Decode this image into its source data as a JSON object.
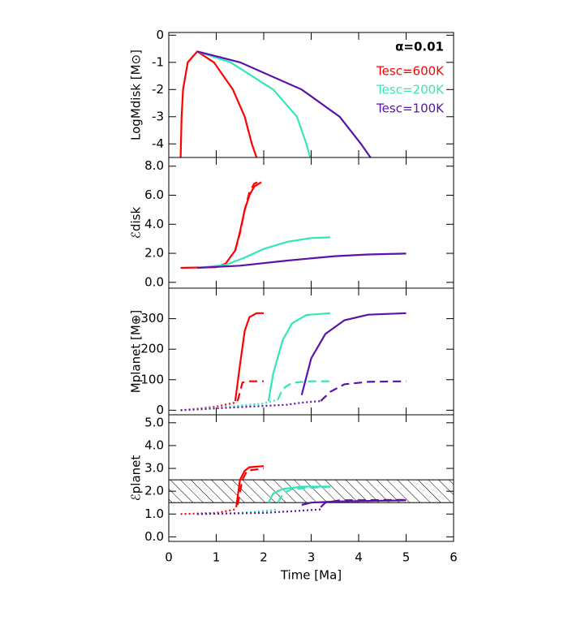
{
  "chart_data": [
    {
      "type": "line",
      "y_label": "LogMdisk [M⊙]",
      "annotation": "α=0.01",
      "xlim": [
        0,
        6
      ],
      "xticks": [
        0,
        1,
        2,
        3,
        4,
        5,
        6
      ],
      "ylim": [
        -4.5,
        0.1
      ],
      "yticks": [
        0,
        -1,
        -2,
        -3,
        -4
      ],
      "series": [
        {
          "name": "Tesc=600K",
          "color": "#ff0000",
          "style": "solid",
          "x": [
            0.25,
            0.27,
            0.3,
            0.4,
            0.6,
            0.95,
            1.35,
            1.6,
            1.75,
            1.85
          ],
          "values": [
            -4.5,
            -3,
            -2,
            -1,
            -0.6,
            -1,
            -2,
            -3,
            -4,
            -4.5
          ]
        },
        {
          "name": "Tesc=200K",
          "color": "#33e6b8",
          "style": "solid",
          "x": [
            0.6,
            1.3,
            2.2,
            2.7,
            2.9,
            2.98
          ],
          "values": [
            -0.6,
            -1,
            -2,
            -3,
            -4,
            -4.5
          ]
        },
        {
          "name": "Tesc=100K",
          "color": "#5a12a8",
          "style": "solid",
          "x": [
            0.6,
            1.5,
            2.8,
            3.6,
            4.05,
            4.25
          ],
          "values": [
            -0.6,
            -1,
            -2,
            -3,
            -4,
            -4.5
          ]
        }
      ]
    },
    {
      "type": "line",
      "y_label": "ℰdisk",
      "xlim": [
        0,
        6
      ],
      "xticks": [
        0,
        1,
        2,
        3,
        4,
        5,
        6
      ],
      "ylim": [
        -0.4,
        8.6
      ],
      "yticks": [
        {
          "value": 0,
          "label": "0.0"
        },
        {
          "value": 2,
          "label": "2.0"
        },
        {
          "value": 4,
          "label": "4.0"
        },
        {
          "value": 6,
          "label": "6.0"
        },
        {
          "value": 8,
          "label": "8.0"
        }
      ],
      "series": [
        {
          "color": "#ff0000",
          "style": "solid",
          "x": [
            0.25,
            1.0,
            1.2,
            1.4,
            1.5,
            1.6,
            1.7,
            1.8,
            1.95
          ],
          "values": [
            1.0,
            1.05,
            1.3,
            2.2,
            3.5,
            5.0,
            6.0,
            6.6,
            6.9
          ]
        },
        {
          "color": "#ff0000",
          "style": "dashed",
          "x": [
            1.4,
            1.5,
            1.6,
            1.7,
            1.8,
            1.95
          ],
          "values": [
            2.2,
            3.4,
            5.0,
            6.2,
            6.8,
            7.0
          ]
        },
        {
          "color": "#33e6b8",
          "style": "solid",
          "x": [
            0.6,
            1.2,
            1.6,
            2.0,
            2.5,
            3.0,
            3.4
          ],
          "values": [
            1.0,
            1.2,
            1.7,
            2.3,
            2.8,
            3.05,
            3.1
          ]
        },
        {
          "color": "#5a12a8",
          "style": "solid",
          "x": [
            0.6,
            1.5,
            2.5,
            3.5,
            4.2,
            5.0
          ],
          "values": [
            1.0,
            1.15,
            1.5,
            1.8,
            1.92,
            1.98
          ]
        }
      ]
    },
    {
      "type": "line",
      "y_label": "Mplanet [M⊕]",
      "xlim": [
        0,
        6
      ],
      "xticks": [
        0,
        1,
        2,
        3,
        4,
        5,
        6
      ],
      "ylim": [
        -15,
        400
      ],
      "yticks": [
        0,
        100,
        200,
        300
      ],
      "series": [
        {
          "color": "#ff0000",
          "style": "dotted",
          "x": [
            0.25,
            0.6,
            1.0,
            1.4
          ],
          "values": [
            0,
            5,
            12,
            25
          ]
        },
        {
          "color": "#ff0000",
          "style": "solid",
          "x": [
            1.4,
            1.5,
            1.6,
            1.7,
            1.85,
            2.0
          ],
          "values": [
            30,
            150,
            260,
            305,
            318,
            318
          ]
        },
        {
          "color": "#ff0000",
          "style": "dashed",
          "x": [
            1.45,
            1.5,
            1.55,
            1.65,
            2.0
          ],
          "values": [
            30,
            60,
            90,
            95,
            95
          ]
        },
        {
          "color": "#33e6b8",
          "style": "dotted",
          "x": [
            0.25,
            1.0,
            1.5,
            2.0,
            2.3
          ],
          "values": [
            0,
            8,
            15,
            22,
            35
          ]
        },
        {
          "color": "#33e6b8",
          "style": "solid",
          "x": [
            2.1,
            2.2,
            2.4,
            2.6,
            2.9,
            3.4
          ],
          "values": [
            30,
            120,
            230,
            285,
            312,
            318
          ]
        },
        {
          "color": "#33e6b8",
          "style": "dashed",
          "x": [
            2.3,
            2.4,
            2.6,
            3.0,
            3.4
          ],
          "values": [
            35,
            70,
            90,
            95,
            95
          ]
        },
        {
          "color": "#5a12a8",
          "style": "dotted",
          "x": [
            0.25,
            1.5,
            2.5,
            2.8,
            3.2
          ],
          "values": [
            0,
            10,
            18,
            25,
            30
          ]
        },
        {
          "color": "#5a12a8",
          "style": "solid",
          "x": [
            2.8,
            3.0,
            3.3,
            3.7,
            4.2,
            5.0
          ],
          "values": [
            50,
            170,
            250,
            295,
            313,
            318
          ]
        },
        {
          "color": "#5a12a8",
          "style": "dashed",
          "x": [
            3.2,
            3.4,
            3.7,
            4.2,
            5.0
          ],
          "values": [
            30,
            60,
            85,
            93,
            95
          ]
        }
      ]
    },
    {
      "type": "line",
      "y_label": "ℰplanet",
      "x_label": "Time [Ma]",
      "xlim": [
        0,
        6
      ],
      "xticks": [
        0,
        1,
        2,
        3,
        4,
        5,
        6
      ],
      "ylim": [
        -0.2,
        5.35
      ],
      "yticks": [
        {
          "value": 0,
          "label": "0.0"
        },
        {
          "value": 1,
          "label": "1.0"
        },
        {
          "value": 2,
          "label": "2.0"
        },
        {
          "value": 3,
          "label": "3.0"
        },
        {
          "value": 4,
          "label": "4.0"
        },
        {
          "value": 5,
          "label": "5.0"
        }
      ],
      "band": [
        1.5,
        2.5
      ],
      "series": [
        {
          "color": "#ff0000",
          "style": "dotted",
          "x": [
            0.25,
            1.0,
            1.4
          ],
          "values": [
            1.0,
            1.05,
            1.2
          ]
        },
        {
          "color": "#ff0000",
          "style": "solid",
          "x": [
            1.42,
            1.5,
            1.6,
            1.7,
            2.0
          ],
          "values": [
            1.3,
            2.5,
            2.9,
            3.05,
            3.1
          ]
        },
        {
          "color": "#ff0000",
          "style": "dashed",
          "x": [
            1.45,
            1.55,
            1.65,
            2.0
          ],
          "values": [
            1.4,
            2.5,
            2.9,
            3.0
          ]
        },
        {
          "color": "#33e6b8",
          "style": "dotted",
          "x": [
            0.6,
            1.5,
            2.1,
            2.3
          ],
          "values": [
            1.0,
            1.05,
            1.15,
            1.2
          ]
        },
        {
          "color": "#33e6b8",
          "style": "solid",
          "x": [
            2.1,
            2.2,
            2.4,
            2.8,
            3.4
          ],
          "values": [
            1.5,
            1.9,
            2.1,
            2.2,
            2.2
          ]
        },
        {
          "color": "#33e6b8",
          "style": "dashed",
          "x": [
            2.3,
            2.4,
            2.6,
            3.4
          ],
          "values": [
            1.5,
            1.9,
            2.1,
            2.2
          ]
        },
        {
          "color": "#5a12a8",
          "style": "dotted",
          "x": [
            0.6,
            2.0,
            2.8,
            3.2
          ],
          "values": [
            1.0,
            1.05,
            1.15,
            1.2
          ]
        },
        {
          "color": "#5a12a8",
          "style": "solid",
          "x": [
            2.8,
            3.0,
            3.5,
            5.0
          ],
          "values": [
            1.4,
            1.5,
            1.55,
            1.6
          ]
        },
        {
          "color": "#5a12a8",
          "style": "dashed",
          "x": [
            3.2,
            3.3,
            3.6,
            5.0
          ],
          "values": [
            1.3,
            1.5,
            1.6,
            1.62
          ]
        }
      ]
    }
  ]
}
